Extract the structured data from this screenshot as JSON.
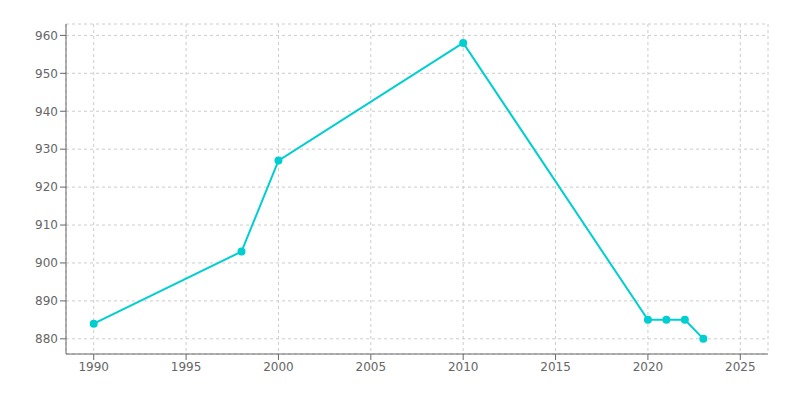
{
  "chart_data": {
    "type": "line",
    "x": [
      1990,
      1998,
      2000,
      2010,
      2020,
      2021,
      2022,
      2023
    ],
    "values": [
      884,
      903,
      927,
      958,
      885,
      885,
      885,
      880
    ],
    "color": "#00CED1",
    "marker": "circle",
    "xlim": [
      1988.5,
      2026.5
    ],
    "ylim": [
      876,
      963
    ],
    "xticks": [
      1990,
      1995,
      2000,
      2005,
      2010,
      2015,
      2020,
      2025
    ],
    "yticks": [
      880,
      890,
      900,
      910,
      920,
      930,
      940,
      950,
      960
    ],
    "grid": true
  }
}
